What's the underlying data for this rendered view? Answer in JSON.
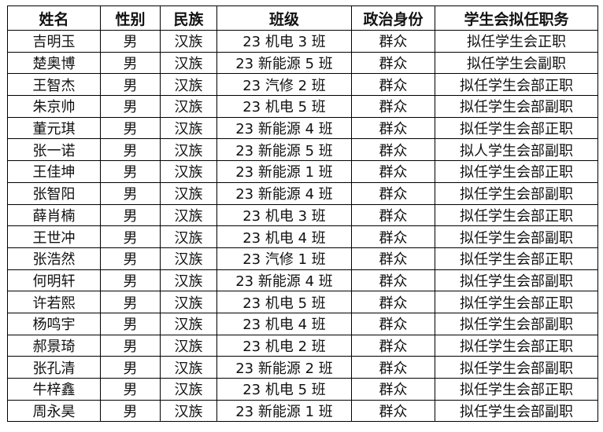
{
  "headers": [
    "姓名",
    "性别",
    "民族",
    "班级",
    "政治身份",
    "学生会拟任职务"
  ],
  "rows": [
    [
      "吉明玉",
      "男",
      "汉族",
      "23 机电 3 班",
      "群众",
      "拟任学生会正职"
    ],
    [
      "楚奥博",
      "男",
      "汉族",
      "23 新能源 5 班",
      "群众",
      "拟任学生会副职"
    ],
    [
      "王智杰",
      "男",
      "汉族",
      "23 汽修 2 班",
      "群众",
      "拟任学生会部正职"
    ],
    [
      "朱京帅",
      "男",
      "汉族",
      "23 机电 5 班",
      "群众",
      "拟任学生会部副职"
    ],
    [
      "董元琪",
      "男",
      "汉族",
      "23 新能源 4 班",
      "群众",
      "拟任学生会部正职"
    ],
    [
      "张一诺",
      "男",
      "汉族",
      "23 新能源 5 班",
      "群众",
      "拟人学生会部副职"
    ],
    [
      "王佳坤",
      "男",
      "汉族",
      "23 新能源 1 班",
      "群众",
      "拟任学生会部正职"
    ],
    [
      "张智阳",
      "男",
      "汉族",
      "23 新能源 4 班",
      "群众",
      "拟任学生会部副职"
    ],
    [
      "薛肖楠",
      "男",
      "汉族",
      "23 机电 3 班",
      "群众",
      "拟任学生会部正职"
    ],
    [
      "王世冲",
      "男",
      "汉族",
      "23 机电 4 班",
      "群众",
      "拟任学生会部副职"
    ],
    [
      "张浩然",
      "男",
      "汉族",
      "23 汽修 1 班",
      "群众",
      "拟任学生会部正职"
    ],
    [
      "何明轩",
      "男",
      "汉族",
      "23 新能源 4 班",
      "群众",
      "拟任学生会部副职"
    ],
    [
      "许若熙",
      "男",
      "汉族",
      "23 机电 5 班",
      "群众",
      "拟任学生会部正职"
    ],
    [
      "杨鸣宇",
      "男",
      "汉族",
      "23 机电 4 班",
      "群众",
      "拟任学生会部副职"
    ],
    [
      "郝景琦",
      "男",
      "汉族",
      "23 机电 2 班",
      "群众",
      "拟任学生会部正职"
    ],
    [
      "张孔清",
      "男",
      "汉族",
      "23 新能源 2 班",
      "群众",
      "拟任学生会部副职"
    ],
    [
      "牛梓鑫",
      "男",
      "汉族",
      "23 机电 5 班",
      "群众",
      "拟任学生会部正职"
    ],
    [
      "周永昊",
      "男",
      "汉族",
      "23 新能源 1 班",
      "群众",
      "拟任学生会部副职"
    ]
  ]
}
